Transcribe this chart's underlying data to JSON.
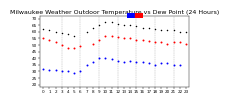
{
  "title": "Milwaukee Weather Outdoor Temperature vs Dew Point (24 Hours)",
  "background_color": "#ffffff",
  "plot_bg_color": "#ffffff",
  "temp_color": "#ff0000",
  "dew_color": "#0000ff",
  "black_color": "#000000",
  "grid_color": "#aaaaaa",
  "title_fontsize": 4.5,
  "tick_fontsize": 3.0,
  "marker_size": 2.0,
  "dashed_x": [
    3,
    6,
    9,
    12,
    15,
    18,
    21
  ],
  "x_ticks": [
    0,
    1,
    2,
    3,
    4,
    5,
    6,
    7,
    8,
    9,
    10,
    11,
    12,
    13,
    14,
    15,
    16,
    17,
    18,
    19,
    20,
    21,
    22,
    23
  ],
  "y_ticks": [
    20,
    25,
    30,
    35,
    40,
    45,
    50,
    55,
    60,
    65,
    70
  ],
  "ylim": [
    18,
    72
  ],
  "xlim": [
    -0.5,
    23.5
  ],
  "temp_x": [
    0,
    1,
    2,
    3,
    4,
    5,
    6,
    8,
    9,
    10,
    11,
    12,
    13,
    14,
    15,
    16,
    17,
    18,
    19,
    20,
    21,
    22,
    23
  ],
  "temp_y": [
    55,
    54,
    52,
    50,
    48,
    48,
    49,
    51,
    54,
    57,
    57,
    56,
    55,
    55,
    54,
    54,
    53,
    52,
    52,
    51,
    52,
    52,
    51
  ],
  "dew_x": [
    0,
    1,
    2,
    3,
    4,
    5,
    6,
    7,
    8,
    9,
    10,
    11,
    12,
    13,
    14,
    15,
    16,
    17,
    18,
    19,
    20,
    21,
    22
  ],
  "dew_y": [
    32,
    31,
    31,
    30,
    30,
    29,
    30,
    35,
    37,
    40,
    40,
    39,
    38,
    37,
    38,
    37,
    37,
    36,
    35,
    36,
    36,
    35,
    35
  ],
  "black_x": [
    0,
    1,
    2,
    3,
    4,
    5,
    7,
    8,
    9,
    10,
    11,
    12,
    13,
    14,
    15,
    16,
    17,
    18,
    19,
    20,
    21,
    22,
    23
  ],
  "black_y": [
    62,
    61,
    60,
    59,
    58,
    57,
    60,
    63,
    65,
    67,
    67,
    66,
    65,
    65,
    64,
    63,
    63,
    62,
    61,
    61,
    61,
    60,
    60
  ]
}
